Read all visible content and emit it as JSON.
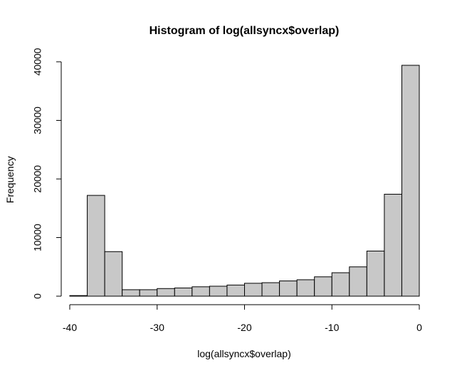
{
  "chart_data": {
    "type": "bar",
    "title": "Histogram of log(allsyncx$overlap)",
    "xlabel": "log(allsyncx$overlap)",
    "ylabel": "Frequency",
    "xlim": [
      -40,
      0
    ],
    "ylim": [
      0,
      40000
    ],
    "x_ticks": [
      -40,
      -30,
      -20,
      -10,
      0
    ],
    "y_ticks": [
      0,
      10000,
      20000,
      30000,
      40000
    ],
    "bin_width": 2,
    "bins": [
      {
        "start": -40,
        "end": -38,
        "count": 100
      },
      {
        "start": -38,
        "end": -36,
        "count": 17200
      },
      {
        "start": -36,
        "end": -34,
        "count": 7600
      },
      {
        "start": -34,
        "end": -32,
        "count": 1100
      },
      {
        "start": -32,
        "end": -30,
        "count": 1100
      },
      {
        "start": -30,
        "end": -28,
        "count": 1300
      },
      {
        "start": -28,
        "end": -26,
        "count": 1400
      },
      {
        "start": -26,
        "end": -24,
        "count": 1600
      },
      {
        "start": -24,
        "end": -22,
        "count": 1700
      },
      {
        "start": -22,
        "end": -20,
        "count": 1900
      },
      {
        "start": -20,
        "end": -18,
        "count": 2200
      },
      {
        "start": -18,
        "end": -16,
        "count": 2300
      },
      {
        "start": -16,
        "end": -14,
        "count": 2600
      },
      {
        "start": -14,
        "end": -12,
        "count": 2800
      },
      {
        "start": -12,
        "end": -10,
        "count": 3300
      },
      {
        "start": -10,
        "end": -8,
        "count": 4000
      },
      {
        "start": -8,
        "end": -6,
        "count": 5000
      },
      {
        "start": -6,
        "end": -4,
        "count": 7700
      },
      {
        "start": -4,
        "end": -2,
        "count": 17400
      },
      {
        "start": -2,
        "end": 0,
        "count": 39400
      }
    ],
    "bar_fill": "#c8c8c8",
    "bar_stroke": "#000000",
    "grid": false,
    "legend": "none"
  }
}
